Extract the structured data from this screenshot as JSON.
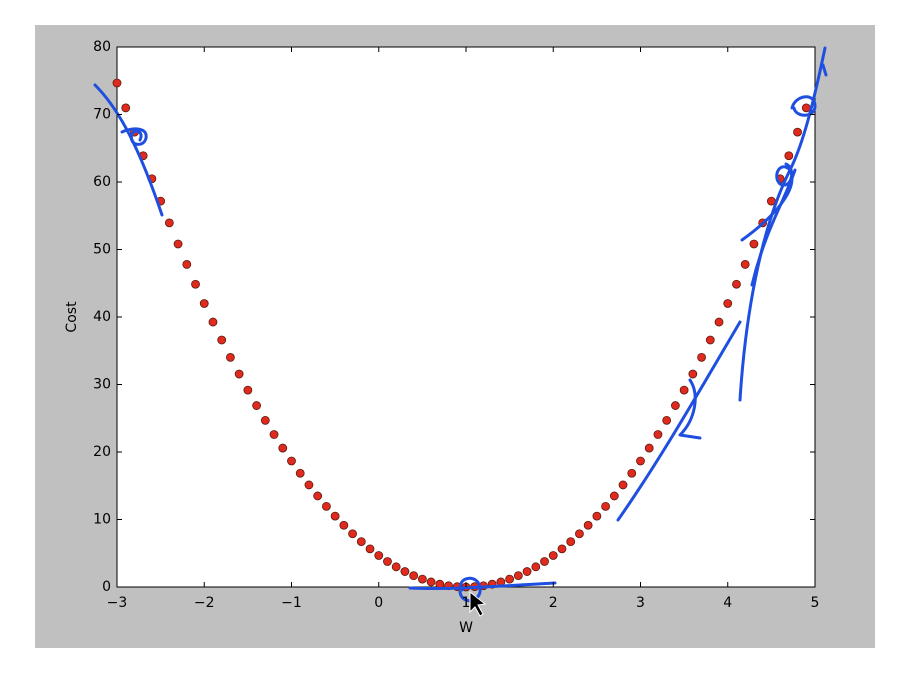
{
  "chart_data": {
    "type": "scatter",
    "xlabel": "W",
    "ylabel": "Cost",
    "x": [
      -3.0,
      -2.9,
      -2.8,
      -2.7,
      -2.6,
      -2.5,
      -2.4,
      -2.3,
      -2.2,
      -2.1,
      -2.0,
      -1.9,
      -1.8,
      -1.7,
      -1.6,
      -1.5,
      -1.4,
      -1.3,
      -1.2,
      -1.1,
      -1.0,
      -0.9,
      -0.8,
      -0.7,
      -0.6,
      -0.5,
      -0.4,
      -0.3,
      -0.2,
      -0.1,
      0.0,
      0.1,
      0.2,
      0.3,
      0.4,
      0.5,
      0.6,
      0.7,
      0.8,
      0.9,
      1.0,
      1.1,
      1.2,
      1.3,
      1.4,
      1.5,
      1.6,
      1.7,
      1.8,
      1.9,
      2.0,
      2.1,
      2.2,
      2.3,
      2.4,
      2.5,
      2.6,
      2.7,
      2.8,
      2.9,
      3.0,
      3.1,
      3.2,
      3.3,
      3.4,
      3.5,
      3.6,
      3.7,
      3.8,
      3.9,
      4.0,
      4.1,
      4.2,
      4.3,
      4.4,
      4.5,
      4.6,
      4.7,
      4.8,
      4.9
    ],
    "values": [
      74.67,
      70.98,
      67.39,
      63.89,
      60.48,
      57.17,
      53.95,
      50.82,
      47.79,
      44.85,
      42,
      39.25,
      36.59,
      34.02,
      31.55,
      29.17,
      26.88,
      24.69,
      22.59,
      20.58,
      18.67,
      16.85,
      15.12,
      13.49,
      11.95,
      10.5,
      9.15,
      7.89,
      6.72,
      5.65,
      4.67,
      3.78,
      2.99,
      2.29,
      1.68,
      1.17,
      0.75,
      0.42,
      0.19,
      0.05,
      0,
      0.05,
      0.19,
      0.42,
      0.75,
      1.17,
      1.68,
      2.29,
      2.99,
      3.78,
      4.67,
      5.65,
      6.72,
      7.89,
      9.15,
      10.5,
      11.95,
      13.49,
      15.12,
      16.85,
      18.67,
      20.58,
      22.59,
      24.69,
      26.88,
      29.17,
      31.55,
      34.02,
      36.59,
      39.25,
      42,
      44.85,
      47.79,
      50.82,
      53.95,
      57.17,
      60.48,
      63.89,
      67.39,
      70.98
    ],
    "color": "#e02a1e",
    "xlim": [
      -3,
      5
    ],
    "xticks": [
      {
        "value": -3,
        "label": "−3"
      },
      {
        "value": -2,
        "label": "−2"
      },
      {
        "value": -1,
        "label": "−1"
      },
      0,
      1,
      2,
      3,
      4,
      5
    ],
    "ylim": [
      0,
      80
    ],
    "yticks": [
      0,
      10,
      20,
      30,
      40,
      50,
      60,
      70,
      80
    ],
    "grid": false
  }
}
